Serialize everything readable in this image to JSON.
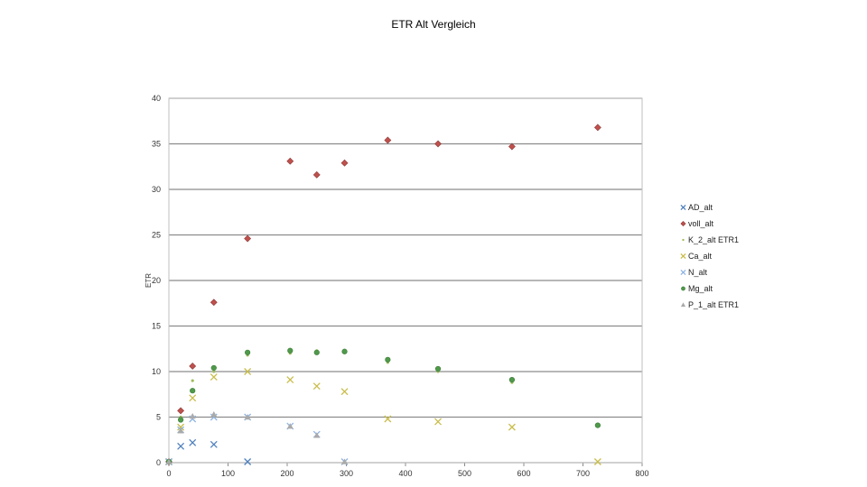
{
  "chart_data": {
    "type": "scatter",
    "title": "ETR Alt Vergleich",
    "xlabel": "",
    "ylabel": "ETR",
    "xlim": [
      0,
      800
    ],
    "ylim": [
      0,
      40
    ],
    "xticks": [
      "0",
      "100",
      "200",
      "300",
      "400",
      "500",
      "600",
      "700",
      "800"
    ],
    "yticks": [
      "0",
      "5",
      "10",
      "15",
      "20",
      "25",
      "30",
      "35",
      "40"
    ],
    "grid": "horizontal",
    "legend": "right",
    "series": [
      {
        "name": "AD_alt",
        "color": "#4f81bd",
        "marker": "x",
        "points": [
          [
            0,
            0.1
          ],
          [
            20,
            1.8
          ],
          [
            40,
            2.2
          ],
          [
            76,
            2.0
          ],
          [
            133,
            0.1
          ]
        ]
      },
      {
        "name": "voll_alt",
        "color": "#c0504d",
        "marker": "diamond",
        "points": [
          [
            0,
            0.1
          ],
          [
            20,
            5.7
          ],
          [
            40,
            10.6
          ],
          [
            76,
            17.6
          ],
          [
            133,
            24.6
          ],
          [
            205,
            33.1
          ],
          [
            250,
            31.6
          ],
          [
            297,
            32.9
          ],
          [
            370,
            35.4
          ],
          [
            455,
            35.0
          ],
          [
            580,
            34.7
          ],
          [
            725,
            36.8
          ]
        ]
      },
      {
        "name": "K_2_alt ETR1",
        "color": "#9bbb59",
        "marker": "point",
        "points": [
          [
            0,
            0.1
          ],
          [
            20,
            5.0
          ],
          [
            40,
            9.0
          ],
          [
            76,
            10.0
          ],
          [
            133,
            11.8
          ],
          [
            205,
            12.0
          ],
          [
            250,
            12.3
          ],
          [
            297,
            12.2
          ],
          [
            370,
            11.0
          ],
          [
            455,
            10.0
          ],
          [
            580,
            8.8
          ],
          [
            725,
            4.0
          ]
        ]
      },
      {
        "name": "Ca_alt",
        "color": "#c9bd4a",
        "marker": "x",
        "points": [
          [
            0,
            0.1
          ],
          [
            20,
            3.9
          ],
          [
            40,
            7.1
          ],
          [
            76,
            9.4
          ],
          [
            133,
            10.0
          ],
          [
            205,
            9.1
          ],
          [
            250,
            8.4
          ],
          [
            297,
            7.8
          ],
          [
            370,
            4.8
          ],
          [
            455,
            4.5
          ],
          [
            580,
            3.9
          ],
          [
            725,
            0.1
          ]
        ]
      },
      {
        "name": "N_alt",
        "color": "#8eb4e3",
        "marker": "x",
        "points": [
          [
            0,
            0.1
          ],
          [
            20,
            3.6
          ],
          [
            40,
            4.8
          ],
          [
            76,
            5.0
          ],
          [
            133,
            5.0
          ],
          [
            205,
            4.0
          ],
          [
            250,
            3.1
          ],
          [
            297,
            0.1
          ]
        ]
      },
      {
        "name": "Mg_alt",
        "color": "#4f9a4a",
        "marker": "circle",
        "points": [
          [
            0,
            0.1
          ],
          [
            20,
            4.7
          ],
          [
            40,
            7.9
          ],
          [
            76,
            10.4
          ],
          [
            133,
            12.1
          ],
          [
            205,
            12.3
          ],
          [
            250,
            12.1
          ],
          [
            297,
            12.2
          ],
          [
            370,
            11.3
          ],
          [
            455,
            10.3
          ],
          [
            580,
            9.1
          ],
          [
            725,
            4.1
          ]
        ]
      },
      {
        "name": "P_1_alt ETR1",
        "color": "#aaaaaa",
        "marker": "triangle",
        "points": [
          [
            0,
            0.1
          ],
          [
            20,
            3.5
          ],
          [
            40,
            5.1
          ],
          [
            76,
            5.3
          ],
          [
            133,
            5.0
          ],
          [
            205,
            4.0
          ],
          [
            250,
            3.0
          ],
          [
            297,
            0.1
          ]
        ]
      }
    ]
  }
}
